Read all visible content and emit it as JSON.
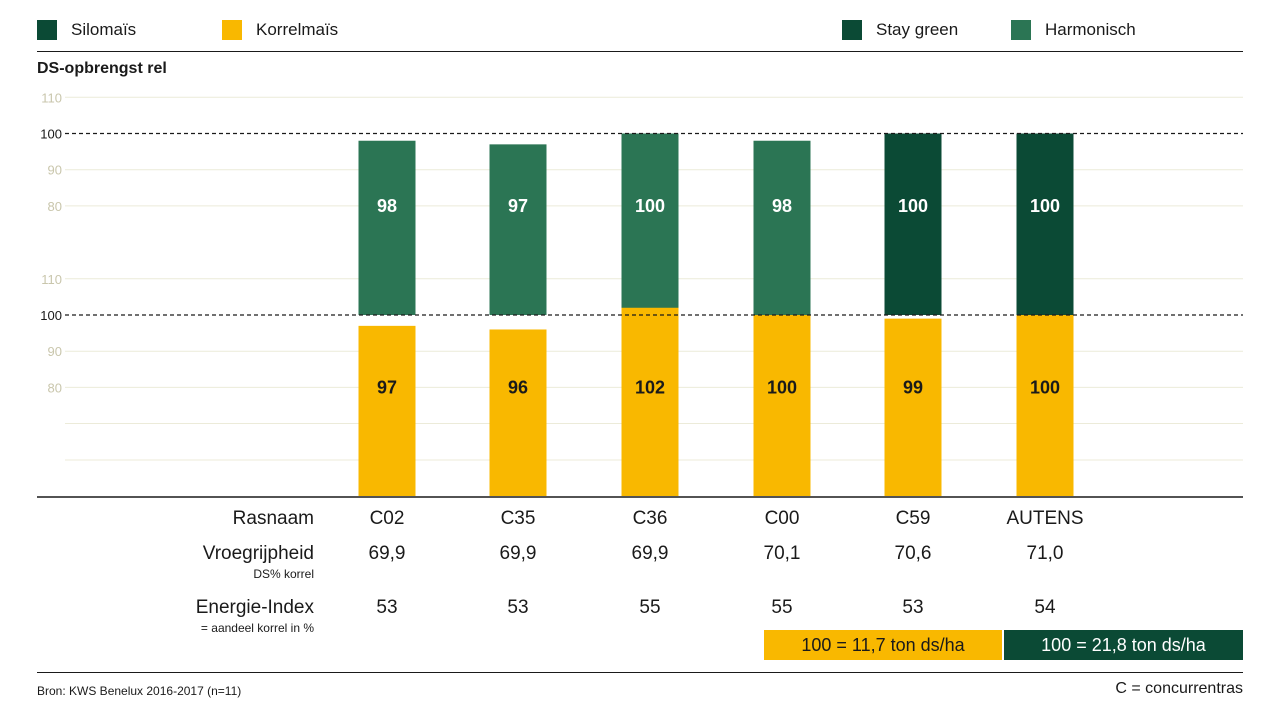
{
  "legend": {
    "silomais": {
      "label": "Silomaïs",
      "color": "#0b4a35"
    },
    "korrelmais": {
      "label": "Korrelmaïs",
      "color": "#f9b800"
    },
    "stay_green": {
      "label": "Stay green",
      "color": "#0b4a35"
    },
    "harmonisch": {
      "label": "Harmonisch",
      "color": "#2b7554"
    }
  },
  "chart_data": {
    "type": "bar",
    "title": "DS-opbrengst rel",
    "categories": [
      "C02",
      "C35",
      "C36",
      "C00",
      "C59",
      "AUTENS"
    ],
    "panels": [
      {
        "name": "Silomaïs",
        "values": [
          98,
          97,
          100,
          98,
          100,
          100
        ],
        "colors": [
          "#2b7554",
          "#2b7554",
          "#2b7554",
          "#2b7554",
          "#0b4a35",
          "#0b4a35"
        ],
        "ticks": [
          110,
          100,
          90,
          80
        ],
        "reference": 100
      },
      {
        "name": "Korrelmaïs",
        "values": [
          97,
          96,
          102,
          100,
          99,
          100
        ],
        "colors": [
          "#f9b800",
          "#f9b800",
          "#f9b800",
          "#f9b800",
          "#f9b800",
          "#f9b800"
        ],
        "ticks": [
          110,
          100,
          90,
          80
        ],
        "reference": 100
      }
    ],
    "grid": true
  },
  "table": {
    "rasnaam_label": "Rasnaam",
    "vroegrijpheid_label": "Vroegrijpheid",
    "vroegrijpheid_sub": "DS% korrel",
    "energie_label": "Energie-Index",
    "energie_sub": "= aandeel korrel in %",
    "vroegrijpheid": [
      "69,9",
      "69,9",
      "69,9",
      "70,1",
      "70,6",
      "71,0"
    ],
    "energie": [
      "53",
      "53",
      "55",
      "55",
      "53",
      "54"
    ]
  },
  "reference": {
    "korrel": {
      "text": "100 = 11,7 ton ds/ha",
      "color": "#f9b800"
    },
    "silo": {
      "text": "100 = 21,8 ton ds/ha",
      "color": "#0b4a35"
    }
  },
  "footer": {
    "source": "Bron: KWS Benelux 2016-2017 (n=11)",
    "note": "C = concurrentras"
  }
}
